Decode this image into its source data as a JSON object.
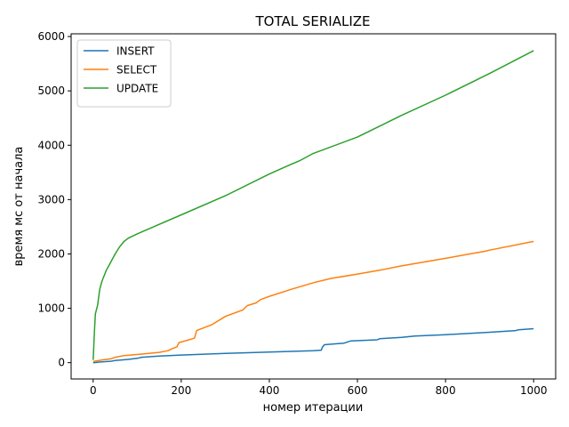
{
  "chart_data": {
    "type": "line",
    "title": "TOTAL SERIALIZE",
    "xlabel": "номер итерации",
    "ylabel": "время мс от начала",
    "xlim": [
      -50,
      1050
    ],
    "ylim": [
      -300,
      6050
    ],
    "xticks": [
      0,
      200,
      400,
      600,
      800,
      1000
    ],
    "yticks": [
      0,
      1000,
      2000,
      3000,
      4000,
      5000,
      6000
    ],
    "grid": false,
    "legend": "top-left",
    "series": [
      {
        "name": "INSERT",
        "color": "#1f77b4",
        "points": [
          [
            0,
            0
          ],
          [
            20,
            15
          ],
          [
            40,
            25
          ],
          [
            50,
            40
          ],
          [
            80,
            60
          ],
          [
            100,
            80
          ],
          [
            110,
            100
          ],
          [
            150,
            120
          ],
          [
            200,
            140
          ],
          [
            300,
            170
          ],
          [
            400,
            195
          ],
          [
            500,
            220
          ],
          [
            518,
            230
          ],
          [
            520,
            280
          ],
          [
            525,
            330
          ],
          [
            570,
            360
          ],
          [
            585,
            400
          ],
          [
            645,
            420
          ],
          [
            650,
            440
          ],
          [
            700,
            465
          ],
          [
            730,
            490
          ],
          [
            800,
            515
          ],
          [
            900,
            560
          ],
          [
            960,
            590
          ],
          [
            965,
            605
          ],
          [
            1000,
            625
          ]
        ]
      },
      {
        "name": "SELECT",
        "color": "#ff7f0e",
        "points": [
          [
            0,
            20
          ],
          [
            20,
            50
          ],
          [
            40,
            70
          ],
          [
            50,
            100
          ],
          [
            70,
            130
          ],
          [
            100,
            150
          ],
          [
            150,
            190
          ],
          [
            170,
            220
          ],
          [
            180,
            260
          ],
          [
            190,
            290
          ],
          [
            195,
            370
          ],
          [
            230,
            450
          ],
          [
            235,
            590
          ],
          [
            270,
            700
          ],
          [
            300,
            850
          ],
          [
            340,
            970
          ],
          [
            350,
            1050
          ],
          [
            370,
            1100
          ],
          [
            380,
            1160
          ],
          [
            400,
            1220
          ],
          [
            450,
            1350
          ],
          [
            500,
            1470
          ],
          [
            540,
            1550
          ],
          [
            600,
            1630
          ],
          [
            650,
            1700
          ],
          [
            700,
            1780
          ],
          [
            800,
            1920
          ],
          [
            890,
            2050
          ],
          [
            900,
            2070
          ],
          [
            1000,
            2230
          ]
        ]
      },
      {
        "name": "UPDATE",
        "color": "#2ca02c",
        "points": [
          [
            0,
            50
          ],
          [
            3,
            600
          ],
          [
            5,
            900
          ],
          [
            10,
            1050
          ],
          [
            15,
            1350
          ],
          [
            20,
            1500
          ],
          [
            30,
            1700
          ],
          [
            40,
            1850
          ],
          [
            50,
            2000
          ],
          [
            60,
            2130
          ],
          [
            70,
            2230
          ],
          [
            80,
            2290
          ],
          [
            100,
            2370
          ],
          [
            200,
            2720
          ],
          [
            300,
            3070
          ],
          [
            400,
            3470
          ],
          [
            450,
            3650
          ],
          [
            470,
            3720
          ],
          [
            500,
            3850
          ],
          [
            600,
            4150
          ],
          [
            650,
            4350
          ],
          [
            700,
            4550
          ],
          [
            800,
            4920
          ],
          [
            900,
            5320
          ],
          [
            1000,
            5740
          ]
        ]
      }
    ]
  }
}
